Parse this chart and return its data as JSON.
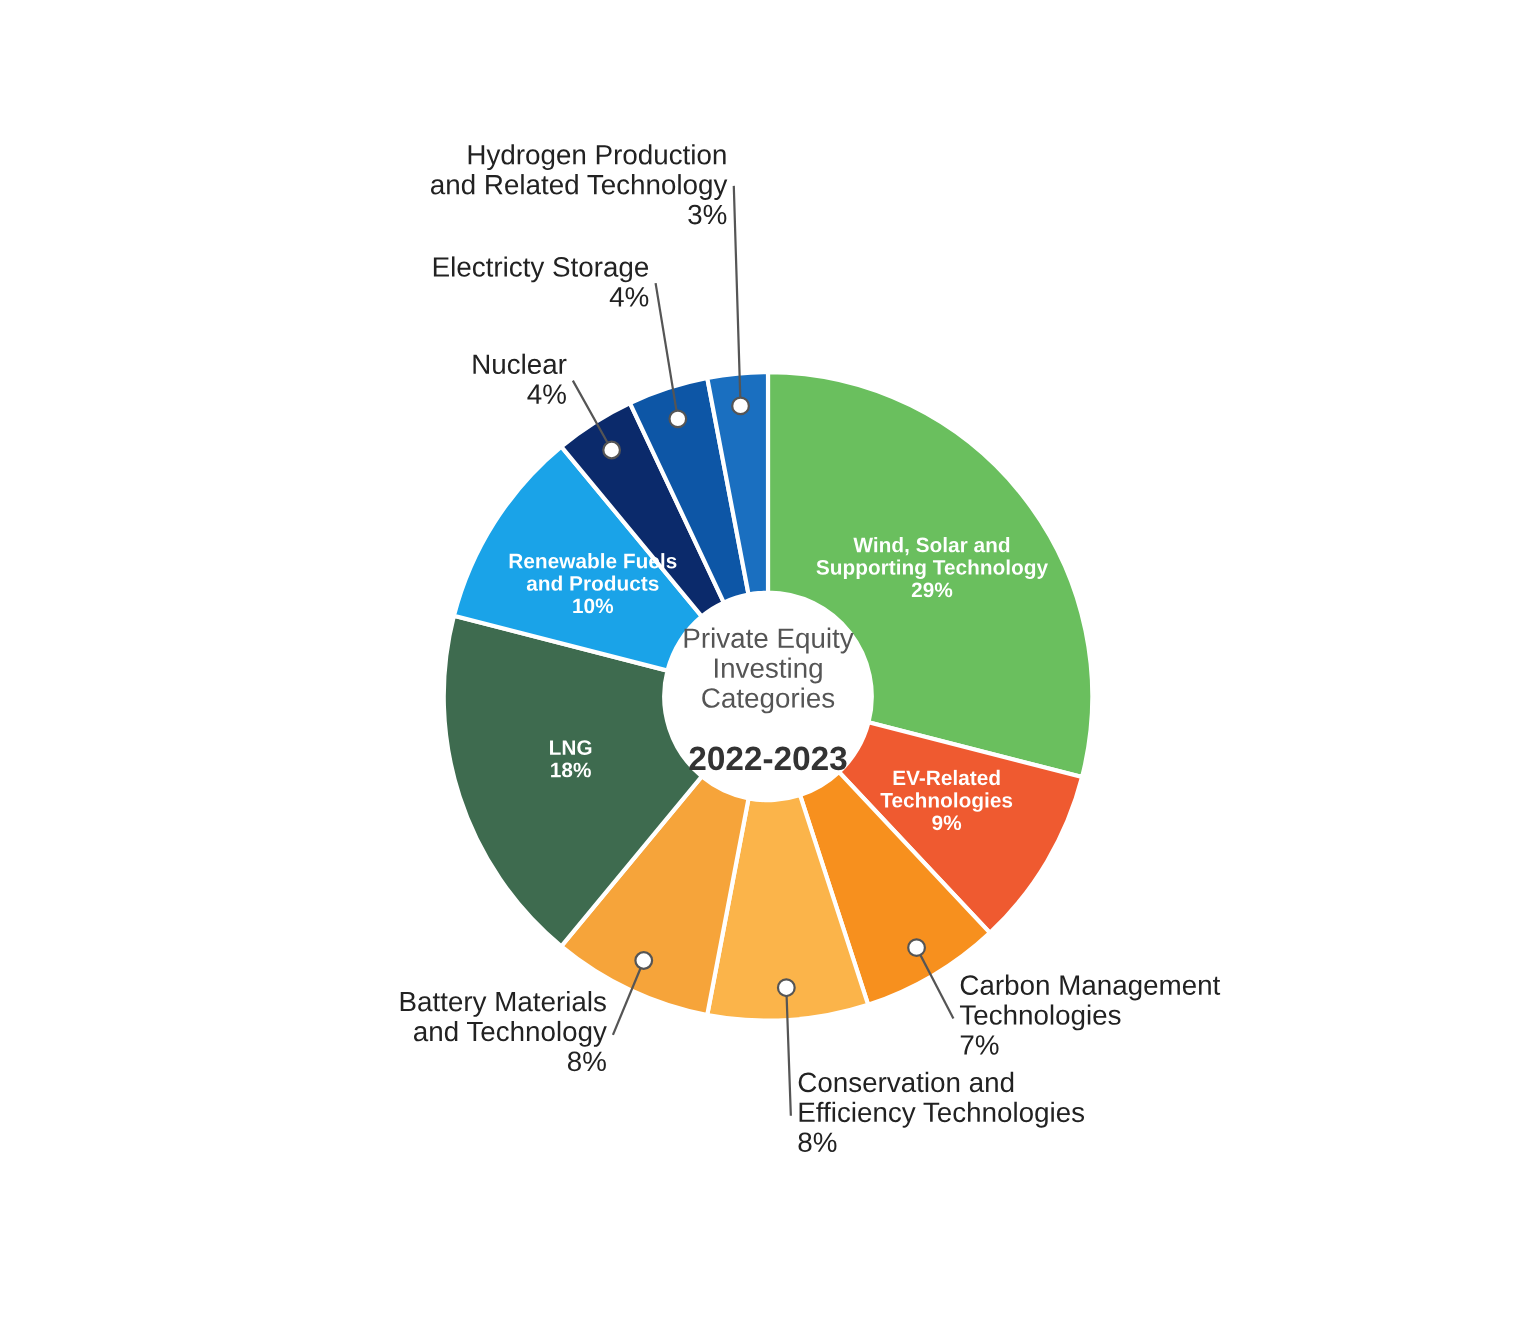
{
  "chart_data": {
    "type": "donut",
    "title": "Private Equity\nInvesting\nCategories",
    "subtitle": "2022-2023",
    "categories": [
      "Wind, Solar and\nSupporting Technology",
      "EV-Related\nTechnologies",
      "Carbon Management\nTechnologies",
      "Conservation and\nEfficiency Technologies",
      "Battery Materials\nand Technology",
      "LNG",
      "Renewable Fuels\nand Products",
      "Nuclear",
      "Electricty Storage",
      "Hydrogen Production\nand Related Technology"
    ],
    "values": [
      29,
      9,
      7,
      8,
      8,
      18,
      10,
      4,
      4,
      3
    ],
    "colors": [
      "#6abf5e",
      "#ef5a30",
      "#f7901e",
      "#fbb44a",
      "#f6a43a",
      "#3e6b4f",
      "#1aa3e8",
      "#0b2a6b",
      "#0d56a6",
      "#1a6fc0"
    ],
    "value_labels": [
      "29%",
      "9%",
      "7%",
      "8%",
      "8%",
      "18%",
      "10%",
      "4%",
      "4%",
      "3%"
    ]
  }
}
